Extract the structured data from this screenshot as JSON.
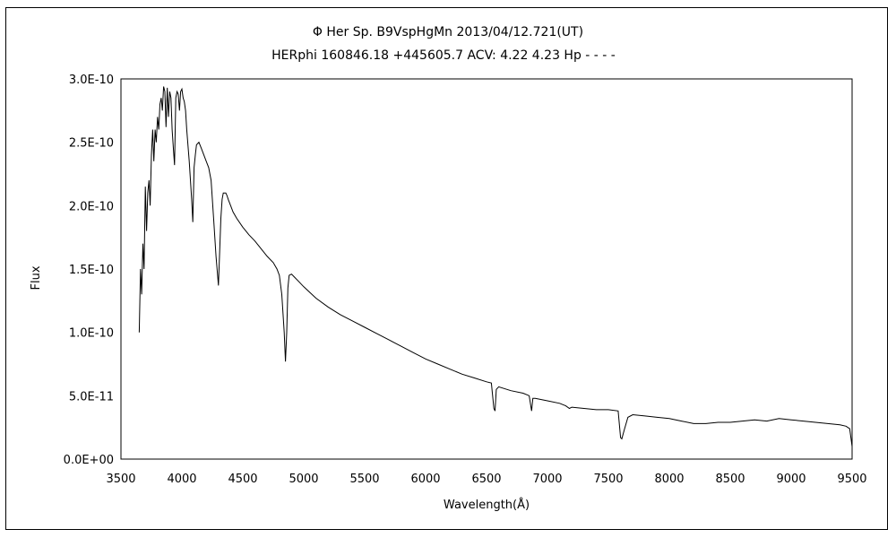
{
  "chart_data": {
    "type": "line",
    "title": "Φ Her    Sp. B9VspHgMn    2013/04/12.721(UT)",
    "subtitle": "HERphi 160846.18 +445605.7 ACV: 4.22 4.23 Hp - - - -",
    "xlabel": "Wavelength(Å)",
    "ylabel": "Flux",
    "xlim": [
      3500,
      9500
    ],
    "ylim": [
      0,
      3e-10
    ],
    "x_ticks": [
      "3500",
      "4000",
      "4500",
      "5000",
      "5500",
      "6000",
      "6500",
      "7000",
      "7500",
      "8000",
      "8500",
      "9000",
      "9500"
    ],
    "y_ticks": [
      "0.0E+00",
      "5.0E-11",
      "1.0E-10",
      "1.5E-10",
      "2.0E-10",
      "2.5E-10",
      "3.0E-10"
    ],
    "grid": false,
    "series": [
      {
        "color": "#000000",
        "x": [
          3650,
          3660,
          3670,
          3680,
          3690,
          3700,
          3710,
          3720,
          3730,
          3740,
          3750,
          3760,
          3770,
          3780,
          3790,
          3800,
          3810,
          3820,
          3830,
          3840,
          3850,
          3860,
          3870,
          3880,
          3890,
          3900,
          3910,
          3920,
          3930,
          3940,
          3950,
          3960,
          3970,
          3980,
          3990,
          4000,
          4010,
          4020,
          4030,
          4040,
          4060,
          4080,
          4090,
          4100,
          4110,
          4120,
          4140,
          4160,
          4180,
          4200,
          4220,
          4240,
          4260,
          4280,
          4300,
          4320,
          4330,
          4340,
          4350,
          4360,
          4370,
          4380,
          4400,
          4420,
          4450,
          4500,
          4550,
          4600,
          4650,
          4700,
          4750,
          4780,
          4800,
          4820,
          4840,
          4850,
          4860,
          4870,
          4880,
          4900,
          4920,
          4950,
          5000,
          5100,
          5200,
          5300,
          5400,
          5500,
          5600,
          5700,
          5800,
          5900,
          6000,
          6100,
          6200,
          6300,
          6400,
          6500,
          6540,
          6560,
          6570,
          6580,
          6600,
          6700,
          6800,
          6850,
          6870,
          6880,
          6900,
          7000,
          7100,
          7150,
          7180,
          7200,
          7300,
          7400,
          7500,
          7580,
          7600,
          7610,
          7630,
          7660,
          7700,
          7800,
          7900,
          8000,
          8100,
          8200,
          8300,
          8400,
          8500,
          8600,
          8700,
          8800,
          8900,
          9000,
          9100,
          9200,
          9300,
          9400,
          9450,
          9480,
          9500
        ],
        "values": [
          1e-10,
          1.5e-10,
          1.3e-10,
          1.7e-10,
          1.5e-10,
          2.15e-10,
          1.8e-10,
          2.1e-10,
          2.2e-10,
          2e-10,
          2.4e-10,
          2.6e-10,
          2.35e-10,
          2.6e-10,
          2.5e-10,
          2.7e-10,
          2.6e-10,
          2.8e-10,
          2.85e-10,
          2.75e-10,
          2.94e-10,
          2.9e-10,
          2.62e-10,
          2.93e-10,
          2.7e-10,
          2.9e-10,
          2.85e-10,
          2.6e-10,
          2.45e-10,
          2.32e-10,
          2.85e-10,
          2.9e-10,
          2.88e-10,
          2.75e-10,
          2.9e-10,
          2.92e-10,
          2.85e-10,
          2.82e-10,
          2.75e-10,
          2.6e-10,
          2.35e-10,
          2.05e-10,
          1.87e-10,
          2.3e-10,
          2.4e-10,
          2.48e-10,
          2.5e-10,
          2.45e-10,
          2.4e-10,
          2.35e-10,
          2.3e-10,
          2.2e-10,
          1.9e-10,
          1.6e-10,
          1.37e-10,
          1.9e-10,
          2.05e-10,
          2.1e-10,
          2.1e-10,
          2.1e-10,
          2.08e-10,
          2.05e-10,
          2e-10,
          1.95e-10,
          1.9e-10,
          1.83e-10,
          1.77e-10,
          1.72e-10,
          1.66e-10,
          1.6e-10,
          1.55e-10,
          1.5e-10,
          1.45e-10,
          1.3e-10,
          1e-10,
          7.7e-11,
          1e-10,
          1.35e-10,
          1.45e-10,
          1.46e-10,
          1.44e-10,
          1.41e-10,
          1.36e-10,
          1.27e-10,
          1.2e-10,
          1.14e-10,
          1.09e-10,
          1.04e-10,
          9.9e-11,
          9.4e-11,
          8.9e-11,
          8.4e-11,
          7.9e-11,
          7.5e-11,
          7.1e-11,
          6.7e-11,
          6.4e-11,
          6.1e-11,
          6e-11,
          4e-11,
          3.8e-11,
          5.5e-11,
          5.7e-11,
          5.4e-11,
          5.2e-11,
          5e-11,
          3.8e-11,
          4.8e-11,
          4.8e-11,
          4.6e-11,
          4.4e-11,
          4.2e-11,
          4e-11,
          4.1e-11,
          4e-11,
          3.9e-11,
          3.9e-11,
          3.8e-11,
          1.7e-11,
          1.6e-11,
          2.3e-11,
          3.3e-11,
          3.5e-11,
          3.4e-11,
          3.3e-11,
          3.2e-11,
          3e-11,
          2.8e-11,
          2.8e-11,
          2.9e-11,
          2.9e-11,
          3e-11,
          3.1e-11,
          3e-11,
          3.2e-11,
          3.1e-11,
          3e-11,
          2.9e-11,
          2.8e-11,
          2.7e-11,
          2.6e-11,
          2.4e-11,
          1e-11
        ]
      }
    ]
  }
}
